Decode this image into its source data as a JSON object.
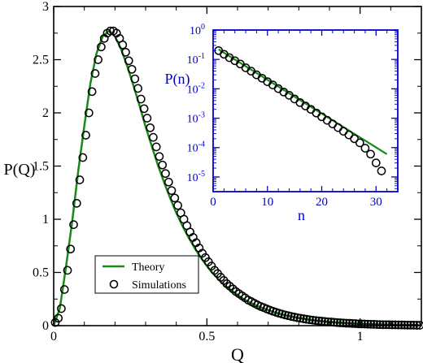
{
  "chart_data": [
    {
      "type": "line",
      "xlabel": "Q",
      "ylabel": "P(Q)",
      "xlim": [
        0,
        1.2
      ],
      "ylim": [
        0,
        3
      ],
      "xticks": [
        0,
        0.5,
        1
      ],
      "xtick_labels": [
        "0",
        "0.5",
        "1"
      ],
      "yticks": [
        0,
        0.5,
        1,
        1.5,
        2,
        2.5,
        3
      ],
      "ytick_labels": [
        "0",
        "0.5",
        "1",
        "1.5",
        "2",
        "2.5",
        "3"
      ],
      "legend": {
        "placement": "lower-left",
        "entries": [
          "Theory",
          "Simulations"
        ]
      },
      "series": [
        {
          "name": "Theory",
          "style": "line",
          "color": "#1a8a1a",
          "x": [
            0,
            0.02,
            0.04,
            0.06,
            0.08,
            0.1,
            0.12,
            0.14,
            0.16,
            0.18,
            0.2,
            0.22,
            0.24,
            0.26,
            0.28,
            0.3,
            0.32,
            0.34,
            0.36,
            0.38,
            0.4,
            0.42,
            0.44,
            0.46,
            0.48,
            0.5,
            0.52,
            0.54,
            0.56,
            0.58,
            0.6,
            0.62,
            0.64,
            0.66,
            0.68,
            0.7,
            0.72,
            0.74,
            0.76,
            0.78,
            0.8,
            0.84,
            0.88,
            0.92,
            0.96,
            1.0,
            1.04,
            1.08,
            1.12,
            1.16,
            1.2
          ],
          "y": [
            0,
            0.16,
            0.55,
            0.97,
            1.45,
            1.88,
            2.28,
            2.56,
            2.72,
            2.77,
            2.72,
            2.6,
            2.44,
            2.26,
            2.07,
            1.87,
            1.69,
            1.51,
            1.35,
            1.2,
            1.06,
            0.94,
            0.83,
            0.73,
            0.64,
            0.56,
            0.49,
            0.43,
            0.375,
            0.33,
            0.29,
            0.25,
            0.22,
            0.19,
            0.165,
            0.145,
            0.125,
            0.108,
            0.094,
            0.082,
            0.071,
            0.053,
            0.04,
            0.03,
            0.023,
            0.017,
            0.013,
            0.01,
            0.008,
            0.006,
            0.005
          ]
        },
        {
          "name": "Simulations",
          "style": "markers",
          "marker": "open-circle",
          "color": "#000000",
          "x": [
            0.005,
            0.015,
            0.025,
            0.035,
            0.045,
            0.055,
            0.065,
            0.075,
            0.085,
            0.095,
            0.105,
            0.115,
            0.125,
            0.135,
            0.145,
            0.155,
            0.165,
            0.175,
            0.185,
            0.195,
            0.205,
            0.215,
            0.225,
            0.235,
            0.245,
            0.255,
            0.265,
            0.275,
            0.285,
            0.295,
            0.305,
            0.315,
            0.325,
            0.335,
            0.345,
            0.355,
            0.365,
            0.375,
            0.385,
            0.395,
            0.405,
            0.415,
            0.425,
            0.435,
            0.445,
            0.455,
            0.465,
            0.475,
            0.485,
            0.495,
            0.505,
            0.515,
            0.525,
            0.535,
            0.545,
            0.555,
            0.565,
            0.575,
            0.585,
            0.595,
            0.605,
            0.615,
            0.625,
            0.635,
            0.645,
            0.655,
            0.665,
            0.675,
            0.685,
            0.695,
            0.705,
            0.715,
            0.725,
            0.735,
            0.745,
            0.755,
            0.765,
            0.775,
            0.785,
            0.795,
            0.805,
            0.815,
            0.825,
            0.835,
            0.845,
            0.855,
            0.865,
            0.875,
            0.885,
            0.895,
            0.905,
            0.915,
            0.925,
            0.935,
            0.945,
            0.955,
            0.965,
            0.975,
            0.985,
            0.995,
            1.005,
            1.015,
            1.025,
            1.035,
            1.045,
            1.055,
            1.065,
            1.075,
            1.085,
            1.095,
            1.105,
            1.115,
            1.125,
            1.135,
            1.145,
            1.155,
            1.165,
            1.175,
            1.185,
            1.195
          ],
          "y": [
            0.03,
            0.07,
            0.16,
            0.34,
            0.52,
            0.72,
            0.95,
            1.15,
            1.37,
            1.58,
            1.79,
            2.0,
            2.2,
            2.37,
            2.5,
            2.62,
            2.7,
            2.75,
            2.77,
            2.77,
            2.75,
            2.7,
            2.64,
            2.57,
            2.49,
            2.41,
            2.32,
            2.23,
            2.13,
            2.04,
            1.95,
            1.86,
            1.77,
            1.68,
            1.59,
            1.51,
            1.43,
            1.35,
            1.27,
            1.2,
            1.13,
            1.06,
            1.0,
            0.94,
            0.88,
            0.83,
            0.78,
            0.73,
            0.68,
            0.64,
            0.6,
            0.56,
            0.52,
            0.49,
            0.455,
            0.425,
            0.395,
            0.37,
            0.345,
            0.32,
            0.3,
            0.28,
            0.26,
            0.24,
            0.225,
            0.21,
            0.195,
            0.18,
            0.17,
            0.157,
            0.146,
            0.136,
            0.126,
            0.117,
            0.109,
            0.101,
            0.094,
            0.087,
            0.081,
            0.075,
            0.07,
            0.065,
            0.06,
            0.056,
            0.052,
            0.048,
            0.045,
            0.042,
            0.039,
            0.036,
            0.034,
            0.031,
            0.029,
            0.027,
            0.025,
            0.023,
            0.022,
            0.02,
            0.019,
            0.017,
            0.016,
            0.015,
            0.014,
            0.013,
            0.012,
            0.011,
            0.01,
            0.0095,
            0.009,
            0.0085,
            0.008,
            0.0075,
            0.007,
            0.0065,
            0.006,
            0.0055,
            0.005,
            0.0045,
            0.004,
            0.004
          ]
        }
      ]
    },
    {
      "type": "line",
      "placement": "inset-top-right",
      "xlabel": "n",
      "ylabel": "P(n)",
      "xlim": [
        0,
        34
      ],
      "ylim_log10": [
        -5.5,
        0
      ],
      "yscale": "log",
      "xticks": [
        0,
        10,
        20,
        30
      ],
      "xtick_labels": [
        "0",
        "10",
        "20",
        "30"
      ],
      "ytick_labels": [
        {
          "base": "10",
          "exp": "0",
          "log10": 0
        },
        {
          "base": "10",
          "exp": "-1",
          "log10": -1
        },
        {
          "base": "10",
          "exp": "-2",
          "log10": -2
        },
        {
          "base": "10",
          "exp": "-3",
          "log10": -3
        },
        {
          "base": "10",
          "exp": "-4",
          "log10": -4
        },
        {
          "base": "10",
          "exp": "-5",
          "log10": -5
        }
      ],
      "axis_color": "#0000cc",
      "series": [
        {
          "style": "line",
          "color": "#1a8a1a",
          "x": [
            1,
            32
          ],
          "y": [
            0.22,
            6e-05
          ]
        },
        {
          "style": "markers",
          "marker": "open-circle",
          "color": "#000000",
          "x": [
            1,
            2,
            3,
            4,
            5,
            6,
            7,
            8,
            9,
            10,
            11,
            12,
            13,
            14,
            15,
            16,
            17,
            18,
            19,
            20,
            21,
            22,
            23,
            24,
            25,
            26,
            27,
            28,
            29,
            30,
            31
          ],
          "y": [
            0.2,
            0.15,
            0.115,
            0.09,
            0.07,
            0.052,
            0.04,
            0.03,
            0.023,
            0.0175,
            0.0135,
            0.0102,
            0.0078,
            0.006,
            0.0045,
            0.0034,
            0.0026,
            0.002,
            0.0015,
            0.00112,
            0.00085,
            0.00064,
            0.00048,
            0.00036,
            0.00027,
            0.0002,
            0.000145,
            9.5e-05,
            6e-05,
            3e-05,
            1.6e-05
          ]
        }
      ]
    }
  ]
}
